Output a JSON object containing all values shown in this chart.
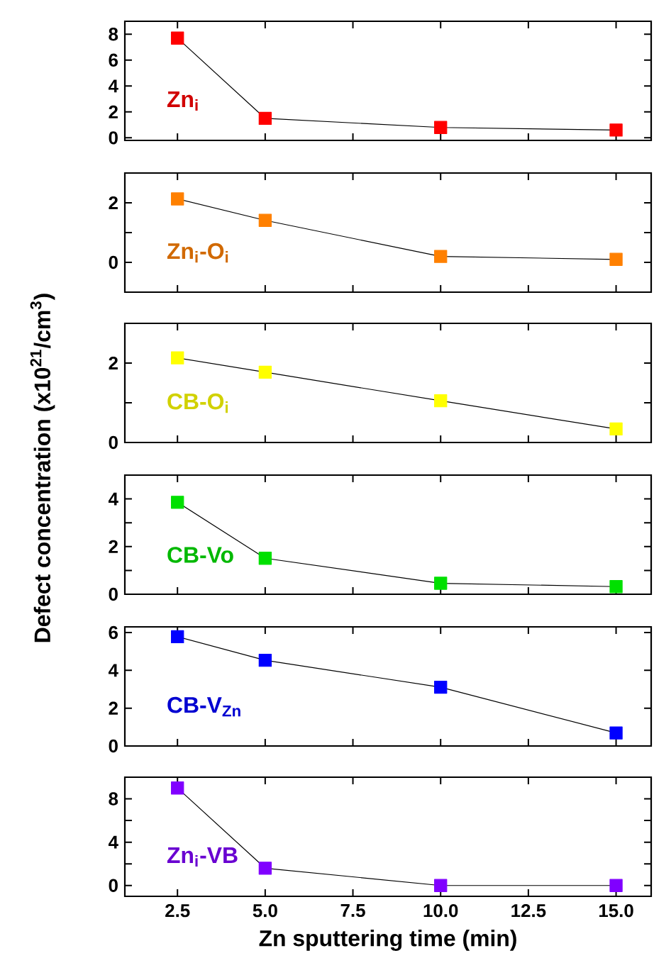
{
  "chart_data": [
    {
      "type": "line",
      "x": [
        2.5,
        5,
        10,
        15
      ],
      "xlim": [
        1,
        16
      ],
      "ylim": [
        -0.2,
        9
      ],
      "marker": "square",
      "tick_labels": "y",
      "xticks": [
        2.5,
        5,
        7.5,
        10,
        12.5,
        15
      ],
      "yticks": [
        0,
        2,
        4,
        6,
        8
      ],
      "series": [
        {
          "name": "Zn$_{i}$",
          "color": "#ff0000",
          "values": [
            7.7,
            1.5,
            0.8,
            0.6
          ]
        }
      ]
    },
    {
      "type": "line",
      "x": [
        2.5,
        5,
        10,
        15
      ],
      "xlim": [
        1,
        16
      ],
      "ylim": [
        -1,
        3
      ],
      "marker": "square",
      "tick_labels": "y",
      "xticks": [
        2.5,
        5,
        7.5,
        10,
        12.5,
        15
      ],
      "yticks": [
        0,
        {
          "value": 1,
          "label": null
        },
        2
      ],
      "series": [
        {
          "name": "Zn$_{i}$-O$_{i}$",
          "color": "#ff8000",
          "values": [
            2.13,
            1.41,
            0.2,
            0.1
          ]
        }
      ]
    },
    {
      "type": "line",
      "x": [
        2.5,
        5,
        10,
        15
      ],
      "xlim": [
        1,
        16
      ],
      "ylim": [
        0,
        3
      ],
      "marker": "square",
      "tick_labels": "y",
      "ylabel": "Defect concentration (x10$^{21}$/cm$^{3}$)",
      "xticks": [
        2.5,
        5,
        7.5,
        10,
        12.5,
        15
      ],
      "yticks": [
        0,
        {
          "value": 1,
          "label": null
        },
        2
      ],
      "series": [
        {
          "name": "CB-O$_{i}$",
          "color": "#ffff00",
          "values": [
            2.13,
            1.77,
            1.05,
            0.34
          ]
        }
      ]
    },
    {
      "type": "line",
      "x": [
        2.5,
        5,
        10,
        15
      ],
      "xlim": [
        1,
        16
      ],
      "ylim": [
        0,
        5
      ],
      "marker": "square",
      "tick_labels": "y",
      "xticks": [
        2.5,
        5,
        7.5,
        10,
        12.5,
        15
      ],
      "yticks": [
        0,
        {
          "value": 1,
          "label": null
        },
        2,
        {
          "value": 3,
          "label": null
        },
        4
      ],
      "series": [
        {
          "name": "CB-Vo",
          "color": "#00e000",
          "values": [
            3.86,
            1.51,
            0.46,
            0.32
          ]
        }
      ]
    },
    {
      "type": "line",
      "x": [
        2.5,
        5,
        10,
        15
      ],
      "xlim": [
        1,
        16
      ],
      "ylim": [
        0,
        6.3
      ],
      "marker": "square",
      "tick_labels": "y",
      "xticks": [
        2.5,
        5,
        7.5,
        10,
        12.5,
        15
      ],
      "yticks": [
        0,
        2,
        4,
        6
      ],
      "series": [
        {
          "name": "CB-V$_{Zn}$",
          "color": "#0000ff",
          "values": [
            5.78,
            4.53,
            3.11,
            0.69
          ]
        }
      ]
    },
    {
      "type": "line",
      "x": [
        2.5,
        5,
        10,
        15
      ],
      "xlim": [
        1,
        16
      ],
      "ylim": [
        -1,
        10
      ],
      "marker": "square",
      "xlabel": "Zn sputtering time (min)",
      "xticks": [
        2.5,
        {
          "value": 5,
          "label": "5.0"
        },
        7.5,
        {
          "value": 10,
          "label": "10.0"
        },
        12.5,
        {
          "value": 15,
          "label": "15.0"
        }
      ],
      "yticks": [
        0,
        {
          "value": 2,
          "label": null
        },
        4,
        {
          "value": 6,
          "label": null
        },
        8
      ],
      "series": [
        {
          "name": "Zn$_{i}$-VB",
          "color": "#8000ff",
          "values": [
            9.0,
            1.6,
            0,
            0
          ]
        }
      ]
    }
  ]
}
